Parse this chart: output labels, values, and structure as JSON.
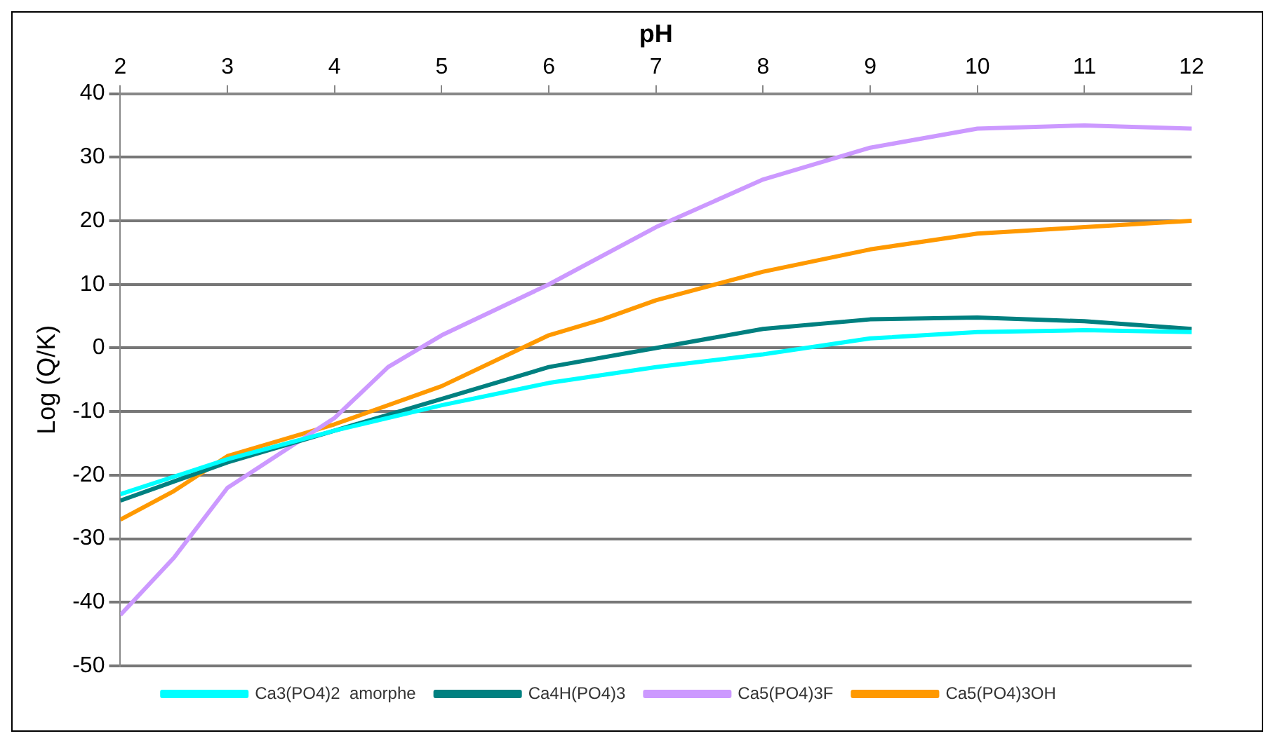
{
  "chart_data": {
    "type": "line",
    "xlabel": "pH",
    "ylabel": "Log (Q/K)",
    "xlim": [
      2,
      12
    ],
    "xticks": [
      2,
      3,
      4,
      5,
      6,
      7,
      8,
      9,
      10,
      11,
      12
    ],
    "ylim": [
      -50,
      40
    ],
    "yticks": [
      -50,
      -40,
      -30,
      -20,
      -10,
      0,
      10,
      20,
      30,
      40
    ],
    "grid": "y",
    "legend": "bottom",
    "marker": "none",
    "line_style": "solid",
    "series": [
      {
        "name": "Ca3(PO4)2  amorphe",
        "color": "#00ffff",
        "x": [
          2,
          3,
          4,
          5,
          6,
          7,
          8,
          9,
          10,
          11,
          12
        ],
        "values": [
          -23,
          -17.5,
          -13,
          -9,
          -5.5,
          -3,
          -1,
          1.5,
          2.5,
          2.8,
          2.5
        ]
      },
      {
        "name": "Ca4H(PO4)3",
        "color": "#008080",
        "x": [
          2,
          3,
          4,
          5,
          6,
          7,
          8,
          9,
          10,
          11,
          12
        ],
        "values": [
          -24,
          -18,
          -13,
          -8,
          -3,
          0,
          3,
          4.5,
          4.8,
          4.2,
          3
        ]
      },
      {
        "name": "Ca5(PO4)3F",
        "color": "#cc99ff",
        "x": [
          2,
          2.5,
          3,
          4,
          4.5,
          5,
          6,
          7,
          8,
          9,
          10,
          11,
          12
        ],
        "values": [
          -42,
          -33,
          -22,
          -11,
          -3,
          2,
          10,
          19,
          26.5,
          31.5,
          34.5,
          35,
          34.5
        ]
      },
      {
        "name": "Ca5(PO4)3OH",
        "color": "#ff9900",
        "x": [
          2,
          2.5,
          3,
          4,
          5,
          6,
          6.5,
          7,
          8,
          9,
          10,
          11,
          12
        ],
        "values": [
          -27,
          -22.5,
          -17,
          -12,
          -6,
          2,
          4.5,
          7.5,
          12,
          15.5,
          18,
          19,
          20
        ]
      }
    ]
  }
}
